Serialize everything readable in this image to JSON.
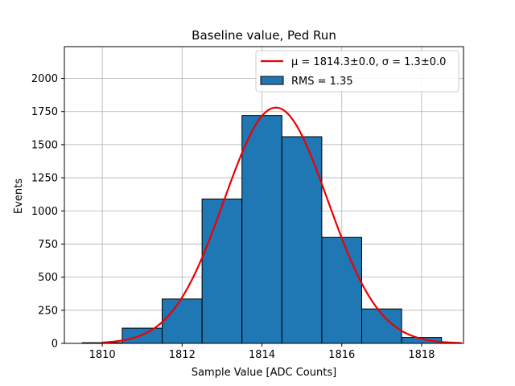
{
  "chart_data": {
    "type": "bar",
    "title": "Baseline value, Ped Run",
    "xlabel": "Sample Value [ADC Counts]",
    "ylabel": "Events",
    "xlim": [
      1809.05,
      1819.05
    ],
    "ylim": [
      0,
      2240
    ],
    "grid": true,
    "xticks": [
      1810,
      1812,
      1814,
      1816,
      1818
    ],
    "yticks": [
      0,
      250,
      500,
      750,
      1000,
      1250,
      1500,
      1750,
      2000
    ],
    "bins": [
      {
        "left": 1809.5,
        "right": 1810.5,
        "value": 5
      },
      {
        "left": 1810.5,
        "right": 1811.5,
        "value": 115
      },
      {
        "left": 1811.5,
        "right": 1812.5,
        "value": 335
      },
      {
        "left": 1812.5,
        "right": 1813.5,
        "value": 1090
      },
      {
        "left": 1813.5,
        "right": 1814.5,
        "value": 1720
      },
      {
        "left": 1814.5,
        "right": 1815.5,
        "value": 1560
      },
      {
        "left": 1815.5,
        "right": 1816.5,
        "value": 800
      },
      {
        "left": 1816.5,
        "right": 1817.5,
        "value": 260
      },
      {
        "left": 1817.5,
        "right": 1818.5,
        "value": 45
      }
    ],
    "fit": {
      "mu": 1814.35,
      "sigma": 1.3,
      "amplitude": 1780,
      "x_range": [
        1810.0,
        1819.0
      ]
    },
    "legend": {
      "placement": "top-right",
      "entries": [
        {
          "kind": "line",
          "label": "μ = 1814.3±0.0, σ = 1.3±0.0"
        },
        {
          "kind": "patch",
          "label": "RMS = 1.35"
        }
      ]
    },
    "colors": {
      "bar_fill": "#1f77b4",
      "bar_edge": "#000000",
      "fit_line": "#ee0000",
      "grid": "#b0b0b0"
    }
  }
}
